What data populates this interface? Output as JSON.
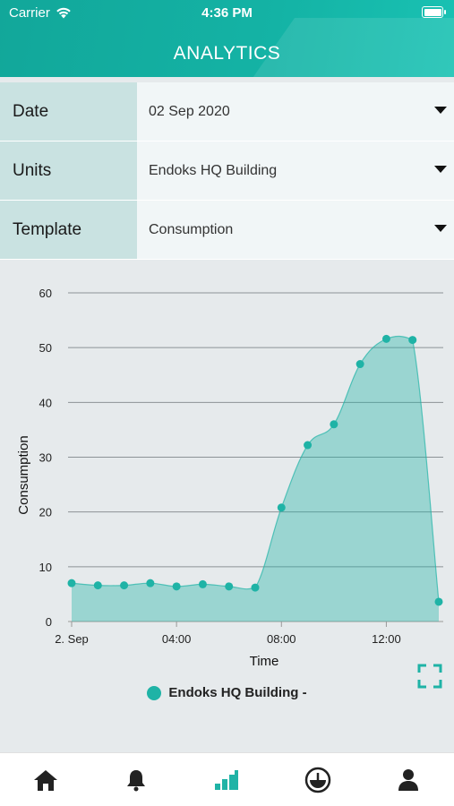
{
  "status": {
    "carrier": "Carrier",
    "time": "4:36 PM"
  },
  "header": {
    "title": "ANALYTICS"
  },
  "filters": [
    {
      "label": "Date",
      "value": "02 Sep 2020"
    },
    {
      "label": "Units",
      "value": "Endoks HQ Building"
    },
    {
      "label": "Template",
      "value": "Consumption"
    }
  ],
  "chart_data": {
    "type": "area",
    "xlabel": "Time",
    "ylabel": "Consumption",
    "ylim": [
      0,
      60
    ],
    "yticks": [
      0,
      10,
      20,
      30,
      40,
      50,
      60
    ],
    "xticks": [
      {
        "hour": 0,
        "label": "2. Sep"
      },
      {
        "hour": 4,
        "label": "04:00"
      },
      {
        "hour": 8,
        "label": "08:00"
      },
      {
        "hour": 12,
        "label": "12:00"
      }
    ],
    "xlim": [
      0,
      14
    ],
    "grid": true,
    "series": [
      {
        "name": "Endoks HQ Building -",
        "color": "#1fb3a6",
        "x": [
          0,
          1,
          2,
          3,
          4,
          5,
          6,
          7,
          8,
          9,
          10,
          11,
          12,
          13,
          14
        ],
        "y": [
          7.0,
          6.6,
          6.6,
          7.0,
          6.4,
          6.8,
          6.4,
          6.2,
          20.8,
          32.2,
          36.0,
          47.0,
          51.6,
          51.4,
          3.6
        ]
      }
    ]
  },
  "legend": {
    "label": "Endoks HQ Building -"
  },
  "tabs": [
    {
      "name": "home-icon"
    },
    {
      "name": "bell-icon"
    },
    {
      "name": "analytics-icon"
    },
    {
      "name": "gauge-icon"
    },
    {
      "name": "profile-icon"
    }
  ]
}
